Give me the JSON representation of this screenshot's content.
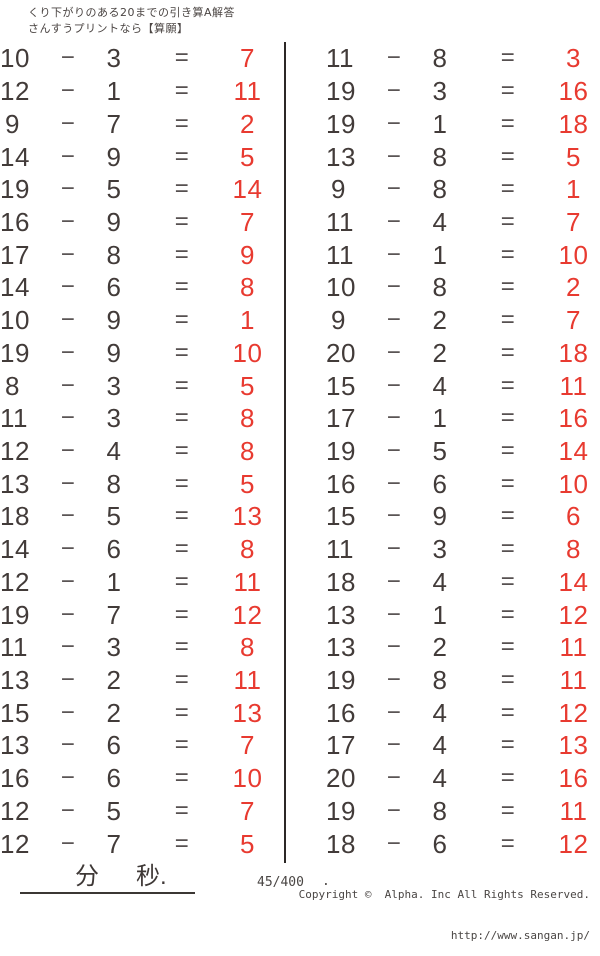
{
  "header": {
    "line1": "くり下がりのある20までの引き算A解答",
    "line2": "さんすうプリントなら【算願】"
  },
  "symbols": {
    "minus": "−",
    "equals": "="
  },
  "colors": {
    "ink": "#423b39",
    "answer_red": "#e83a30"
  },
  "problems": {
    "left": [
      {
        "minuend": 10,
        "subtrahend": 3,
        "difference": 7
      },
      {
        "minuend": 12,
        "subtrahend": 1,
        "difference": 11
      },
      {
        "minuend": 9,
        "subtrahend": 7,
        "difference": 2
      },
      {
        "minuend": 14,
        "subtrahend": 9,
        "difference": 5
      },
      {
        "minuend": 19,
        "subtrahend": 5,
        "difference": 14
      },
      {
        "minuend": 16,
        "subtrahend": 9,
        "difference": 7
      },
      {
        "minuend": 17,
        "subtrahend": 8,
        "difference": 9
      },
      {
        "minuend": 14,
        "subtrahend": 6,
        "difference": 8
      },
      {
        "minuend": 10,
        "subtrahend": 9,
        "difference": 1
      },
      {
        "minuend": 19,
        "subtrahend": 9,
        "difference": 10
      },
      {
        "minuend": 8,
        "subtrahend": 3,
        "difference": 5
      },
      {
        "minuend": 11,
        "subtrahend": 3,
        "difference": 8
      },
      {
        "minuend": 12,
        "subtrahend": 4,
        "difference": 8
      },
      {
        "minuend": 13,
        "subtrahend": 8,
        "difference": 5
      },
      {
        "minuend": 18,
        "subtrahend": 5,
        "difference": 13
      },
      {
        "minuend": 14,
        "subtrahend": 6,
        "difference": 8
      },
      {
        "minuend": 12,
        "subtrahend": 1,
        "difference": 11
      },
      {
        "minuend": 19,
        "subtrahend": 7,
        "difference": 12
      },
      {
        "minuend": 11,
        "subtrahend": 3,
        "difference": 8
      },
      {
        "minuend": 13,
        "subtrahend": 2,
        "difference": 11
      },
      {
        "minuend": 15,
        "subtrahend": 2,
        "difference": 13
      },
      {
        "minuend": 13,
        "subtrahend": 6,
        "difference": 7
      },
      {
        "minuend": 16,
        "subtrahend": 6,
        "difference": 10
      },
      {
        "minuend": 12,
        "subtrahend": 5,
        "difference": 7
      },
      {
        "minuend": 12,
        "subtrahend": 7,
        "difference": 5
      }
    ],
    "right": [
      {
        "minuend": 11,
        "subtrahend": 8,
        "difference": 3
      },
      {
        "minuend": 19,
        "subtrahend": 3,
        "difference": 16
      },
      {
        "minuend": 19,
        "subtrahend": 1,
        "difference": 18
      },
      {
        "minuend": 13,
        "subtrahend": 8,
        "difference": 5
      },
      {
        "minuend": 9,
        "subtrahend": 8,
        "difference": 1
      },
      {
        "minuend": 11,
        "subtrahend": 4,
        "difference": 7
      },
      {
        "minuend": 11,
        "subtrahend": 1,
        "difference": 10
      },
      {
        "minuend": 10,
        "subtrahend": 8,
        "difference": 2
      },
      {
        "minuend": 9,
        "subtrahend": 2,
        "difference": 7
      },
      {
        "minuend": 20,
        "subtrahend": 2,
        "difference": 18
      },
      {
        "minuend": 15,
        "subtrahend": 4,
        "difference": 11
      },
      {
        "minuend": 17,
        "subtrahend": 1,
        "difference": 16
      },
      {
        "minuend": 19,
        "subtrahend": 5,
        "difference": 14
      },
      {
        "minuend": 16,
        "subtrahend": 6,
        "difference": 10
      },
      {
        "minuend": 15,
        "subtrahend": 9,
        "difference": 6
      },
      {
        "minuend": 11,
        "subtrahend": 3,
        "difference": 8
      },
      {
        "minuend": 18,
        "subtrahend": 4,
        "difference": 14
      },
      {
        "minuend": 13,
        "subtrahend": 1,
        "difference": 12
      },
      {
        "minuend": 13,
        "subtrahend": 2,
        "difference": 11
      },
      {
        "minuend": 19,
        "subtrahend": 8,
        "difference": 11
      },
      {
        "minuend": 16,
        "subtrahend": 4,
        "difference": 12
      },
      {
        "minuend": 17,
        "subtrahend": 4,
        "difference": 13
      },
      {
        "minuend": 20,
        "subtrahend": 4,
        "difference": 16
      },
      {
        "minuend": 19,
        "subtrahend": 8,
        "difference": 11
      },
      {
        "minuend": 18,
        "subtrahend": 6,
        "difference": 12
      }
    ]
  },
  "footer": {
    "minutes_label": "分",
    "seconds_label": "秒.",
    "page_number": "45/400",
    "dot": ".",
    "copyright": "Copyright ©  Alpha. Inc All Rights Reserved.",
    "url": "http://www.sangan.jp/"
  }
}
